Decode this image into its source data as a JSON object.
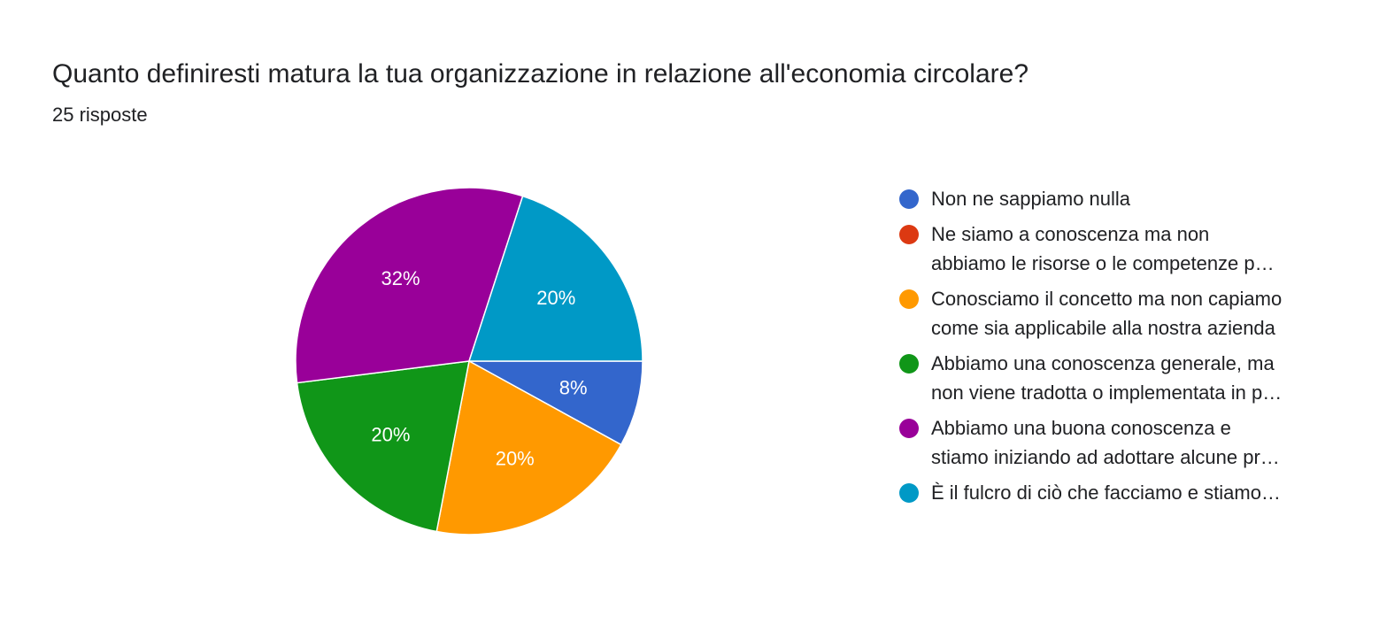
{
  "question": {
    "title": "Quanto definiresti matura la tua organizzazione in relazione all'economia circolare?",
    "response_count": "25 risposte"
  },
  "chart_data": {
    "type": "pie",
    "title": "Quanto definiresti matura la tua organizzazione in relazione all'economia circolare?",
    "total_responses": 25,
    "categories": [
      "Non ne sappiamo nulla",
      "Ne siamo a conoscenza ma non abbiamo le risorse o le competenze p…",
      "Conosciamo il concetto ma non capiamo come sia applicabile alla nostra azienda",
      "Abbiamo una conoscenza generale, ma non viene tradotta o implementata in p…",
      "Abbiamo una buona conoscenza e stiamo iniziando ad adottare alcune pr…",
      "È il fulcro di ciò che facciamo e stiamo…"
    ],
    "values": [
      8,
      0,
      20,
      20,
      32,
      20
    ],
    "labels": [
      "8%",
      "",
      "20%",
      "20%",
      "32%",
      "20%"
    ],
    "colors": [
      "#3366cc",
      "#dc3912",
      "#ff9900",
      "#109618",
      "#990099",
      "#0099c6"
    ],
    "legend_position": "right"
  },
  "legend": [
    {
      "lines": [
        "Non ne sappiamo nulla"
      ],
      "color": "#3366cc"
    },
    {
      "lines": [
        "Ne siamo a conoscenza ma non",
        "abbiamo le risorse o le competenze p…"
      ],
      "color": "#dc3912"
    },
    {
      "lines": [
        "Conosciamo il concetto ma non capiamo",
        "come sia applicabile alla nostra azienda"
      ],
      "color": "#ff9900"
    },
    {
      "lines": [
        "Abbiamo una conoscenza generale, ma",
        "non viene tradotta o implementata in p…"
      ],
      "color": "#109618"
    },
    {
      "lines": [
        "Abbiamo una buona conoscenza e",
        "stiamo iniziando ad adottare alcune pr…"
      ],
      "color": "#990099"
    },
    {
      "lines": [
        "È il fulcro di ciò che facciamo e stiamo…"
      ],
      "color": "#0099c6"
    }
  ]
}
